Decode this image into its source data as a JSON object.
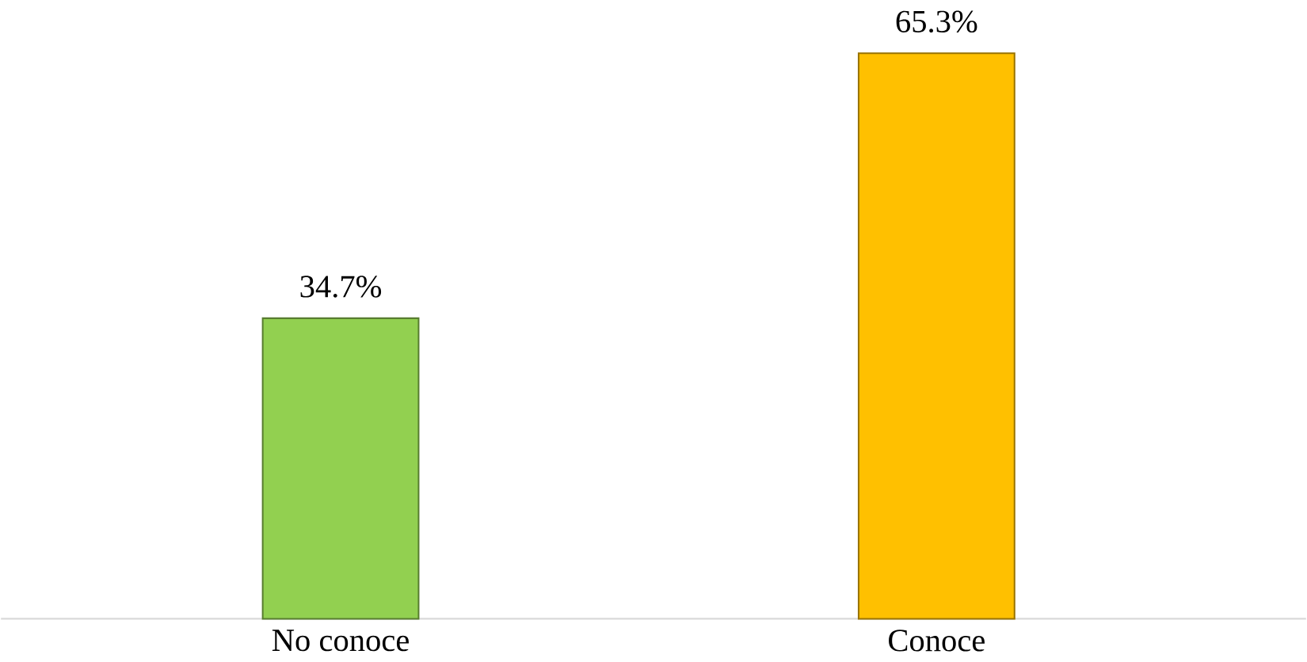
{
  "chart_data": {
    "type": "bar",
    "categories": [
      "No conoce",
      "Conoce"
    ],
    "values": [
      34.7,
      65.3
    ],
    "value_labels": [
      "34.7%",
      "65.3%"
    ],
    "colors": [
      "#92d050",
      "#ffc000"
    ]
  }
}
